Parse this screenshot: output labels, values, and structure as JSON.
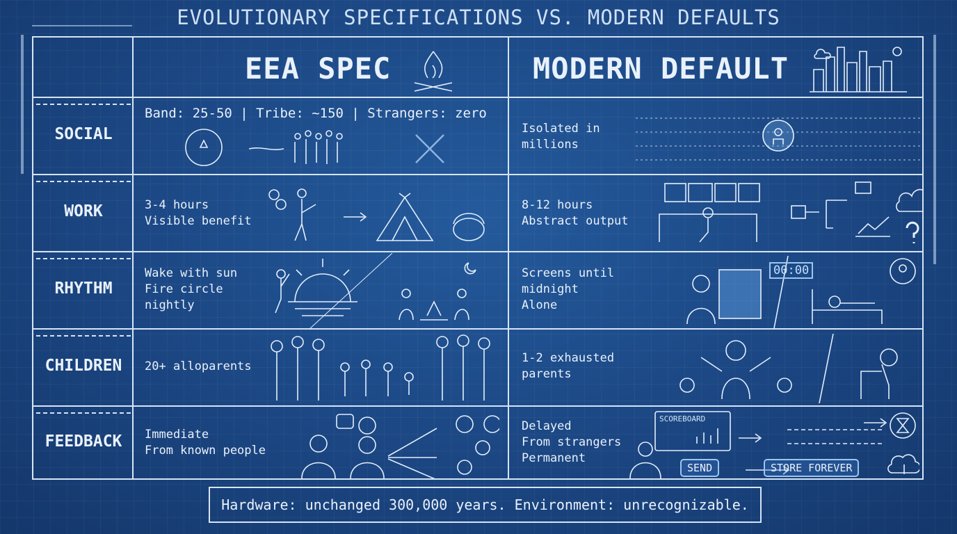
{
  "title": "EVOLUTIONARY SPECIFICATIONS VS. MODERN DEFAULTS",
  "columns": {
    "eea": "EEA SPEC",
    "modern": "MODERN DEFAULT"
  },
  "rows": [
    {
      "label": "SOCIAL",
      "eea": "Band: 25-50 | Tribe: ~150 | Strangers: zero",
      "modern": "Isolated in\nmillions"
    },
    {
      "label": "WORK",
      "eea": "3-4 hours\nVisible benefit",
      "modern": "8-12 hours\nAbstract output"
    },
    {
      "label": "RHYTHM",
      "eea": "Wake with sun\nFire circle\nnightly",
      "modern": "Screens until\nmidnight\nAlone",
      "clock": "00:00"
    },
    {
      "label": "CHILDREN",
      "eea": "20+ alloparents",
      "modern": "1-2 exhausted\nparents"
    },
    {
      "label": "FEEDBACK",
      "eea": "Immediate\nFrom known people",
      "modern": "Delayed\nFrom strangers\nPermanent",
      "scoreboard": "SCOREBOARD",
      "send": "SEND",
      "store": "STORE FOREVER"
    }
  ],
  "footer": "Hardware: unchanged 300,000 years. Environment: unrecognizable.",
  "icons": [
    "fire-icon",
    "city-icon",
    "cloud-icon",
    "sun-icon",
    "people-circle-icon",
    "crowd-icon",
    "x-mark-icon",
    "tent-icon",
    "computer-icon",
    "flowchart-icon",
    "dollar-cloud-icon",
    "question-icon",
    "sunrise-icon",
    "moon-icon",
    "campfire-icon",
    "phone-user-icon",
    "bed-icon",
    "family-icon",
    "stressed-parent-icon",
    "speech-bubble-icon",
    "hourglass-icon",
    "cloud-download-icon"
  ]
}
